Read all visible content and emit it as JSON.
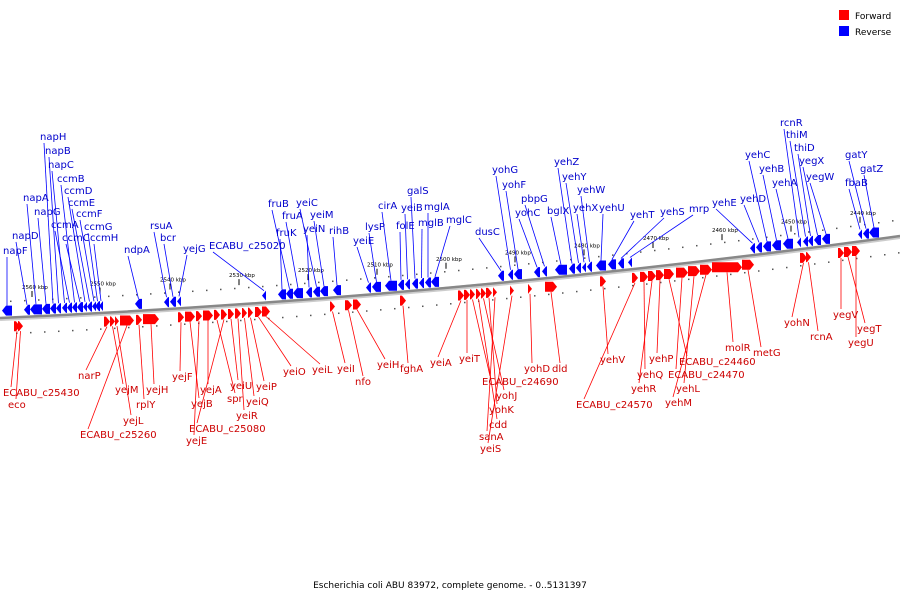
{
  "caption": "Escherichia coli ABU 83972, complete genome. - 0..5131397",
  "legend": [
    {
      "label": "Forward",
      "color": "#ff0000"
    },
    {
      "label": "Reverse",
      "color": "#0000ff"
    }
  ],
  "colors": {
    "forward": "#ff0000",
    "reverse": "#0000ff",
    "forward_label": "#cc0000",
    "reverse_label": "#0000cc",
    "backbone": "#888888"
  },
  "kbp_ticks": [
    "2560 kbp",
    "2550 kbp",
    "2540 kbp",
    "2530 kbp",
    "2520 kbp",
    "2510 kbp",
    "2500 kbp",
    "2490 kbp",
    "2480 kbp",
    "2470 kbp",
    "2460 kbp",
    "2450 kbp",
    "2440 kbp"
  ],
  "reverse_genes": [
    "napF",
    "napD",
    "napA",
    "napG",
    "napH",
    "napB",
    "napC",
    "ccmA",
    "ccmB",
    "ccmC",
    "ccmD",
    "ccmE",
    "ccmF",
    "ccmG",
    "ccmH",
    "ndpA",
    "rsuA",
    "bcr",
    "yejG",
    "ECABU_c25020",
    "fruK",
    "fruB",
    "fruA",
    "yeiN",
    "yeiC",
    "yeiM",
    "rihB",
    "yeiE",
    "lysP",
    "cirA",
    "folE",
    "yeiB",
    "galS",
    "mglB",
    "mglA",
    "mglC",
    "dusC",
    "yohG",
    "yohF",
    "yohC",
    "pbpG",
    "bglX",
    "yehZ",
    "yehY",
    "yehX",
    "yehW",
    "yehU",
    "yehT",
    "yehS",
    "mrp",
    "yehE",
    "yehD",
    "yehC",
    "yehB",
    "yehA",
    "rcnR",
    "thiM",
    "thiD",
    "yegX",
    "yegW",
    "fbaB",
    "gatY",
    "gatZ"
  ],
  "forward_genes": [
    "ECABU_c25430",
    "eco",
    "narP",
    "yejM",
    "yejL",
    "ECABU_c25260",
    "rplY",
    "yejH",
    "yejF",
    "yejB",
    "yejE",
    "yejA",
    "spr",
    "ECABU_c25080",
    "yeiU",
    "yeiR",
    "yeiQ",
    "yeiP",
    "yeiO",
    "yeiL",
    "yeiI",
    "nfo",
    "yeiH",
    "fghA",
    "yeiA",
    "yeiT",
    "ECABU_c24690",
    "cdd",
    "yohJ",
    "yohK",
    "sanA",
    "yeiS",
    "yohD",
    "dld",
    "yehV",
    "ECABU_c24570",
    "yehQ",
    "yehR",
    "yehP",
    "ECABU_c24460",
    "ECABU_c24470",
    "yehL",
    "yehM",
    "molR",
    "metG",
    "yohN",
    "rcnA",
    "yegV",
    "yegT",
    "yegU"
  ]
}
